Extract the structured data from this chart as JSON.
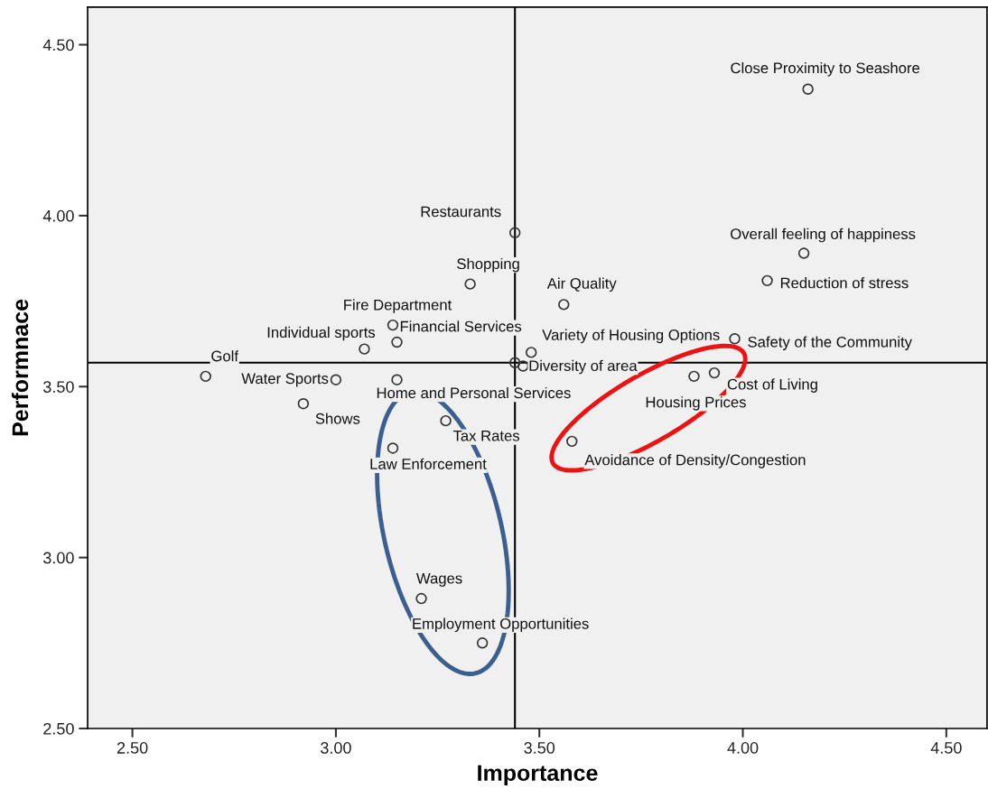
{
  "chart_data": {
    "type": "scatter",
    "xlabel": "Importance",
    "ylabel": "Performnace",
    "xlim": [
      2.39,
      4.6
    ],
    "ylim": [
      2.5,
      4.61
    ],
    "xticks": [
      {
        "value": 2.5,
        "label": "2.50"
      },
      {
        "value": 3.0,
        "label": "3.00"
      },
      {
        "value": 3.5,
        "label": "3.50"
      },
      {
        "value": 4.0,
        "label": "4.00"
      },
      {
        "value": 4.5,
        "label": "4.50"
      }
    ],
    "yticks": [
      {
        "value": 2.5,
        "label": "2.50"
      },
      {
        "value": 3.0,
        "label": "3.00"
      },
      {
        "value": 3.5,
        "label": "3.50"
      },
      {
        "value": 4.0,
        "label": "4.00"
      },
      {
        "value": 4.5,
        "label": "4.50"
      }
    ],
    "marker": "circle",
    "grid": false,
    "legend": false,
    "series": [
      {
        "color": "#333333",
        "x": [
          4.16,
          3.44,
          4.15,
          3.33,
          4.06,
          3.56,
          3.14,
          3.15,
          3.07,
          3.48,
          3.98,
          2.68,
          3.0,
          3.44,
          3.46,
          3.15,
          3.88,
          3.93,
          2.92,
          3.27,
          3.14,
          3.58,
          3.21,
          3.36
        ],
        "values": [
          4.37,
          3.95,
          3.89,
          3.8,
          3.81,
          3.74,
          3.68,
          3.63,
          3.61,
          3.6,
          3.64,
          3.53,
          3.52,
          3.57,
          3.56,
          3.52,
          3.53,
          3.54,
          3.45,
          3.4,
          3.32,
          3.34,
          2.88,
          2.75
        ]
      }
    ],
    "ref_lines": [
      {
        "axis": "x",
        "value": 3.44,
        "color": "#000000"
      },
      {
        "axis": "y",
        "value": 3.57,
        "color": "#000000"
      }
    ],
    "annotations": [
      {
        "text": "Close Proximity to Seashore",
        "x": 4.16,
        "y": 4.37
      },
      {
        "text": "Restaurants",
        "x": 3.44,
        "y": 3.95
      },
      {
        "text": "Overall feeling of happiness",
        "x": 4.15,
        "y": 3.89
      },
      {
        "text": "Shopping",
        "x": 3.33,
        "y": 3.8
      },
      {
        "text": "Reduction of stress",
        "x": 4.06,
        "y": 3.81
      },
      {
        "text": "Air Quality",
        "x": 3.56,
        "y": 3.74
      },
      {
        "text": "Fire Department",
        "x": 3.14,
        "y": 3.68
      },
      {
        "text": "Financial Services",
        "x": 3.15,
        "y": 3.63
      },
      {
        "text": "Individual sports",
        "x": 3.07,
        "y": 3.61
      },
      {
        "text": "Variety of Housing Options",
        "x": 3.48,
        "y": 3.6
      },
      {
        "text": "Safety of the Community",
        "x": 3.98,
        "y": 3.64
      },
      {
        "text": "Golf",
        "x": 2.68,
        "y": 3.53
      },
      {
        "text": "Water Sports",
        "x": 3.0,
        "y": 3.52
      },
      {
        "text": "Diversity of area",
        "x": 3.46,
        "y": 3.56
      },
      {
        "text": "Home and Personal Services",
        "x": 3.15,
        "y": 3.52
      },
      {
        "text": "Housing Prices",
        "x": 3.88,
        "y": 3.53
      },
      {
        "text": "Cost of Living",
        "x": 3.93,
        "y": 3.54
      },
      {
        "text": "Shows",
        "x": 2.92,
        "y": 3.45
      },
      {
        "text": "Tax Rates",
        "x": 3.27,
        "y": 3.4
      },
      {
        "text": "Law Enforcement",
        "x": 3.14,
        "y": 3.32
      },
      {
        "text": "Avoidance of Density/Congestion",
        "x": 3.58,
        "y": 3.34
      },
      {
        "text": "Wages",
        "x": 3.21,
        "y": 2.88
      },
      {
        "text": "Employment Opportunities",
        "x": 3.36,
        "y": 2.75
      }
    ]
  }
}
